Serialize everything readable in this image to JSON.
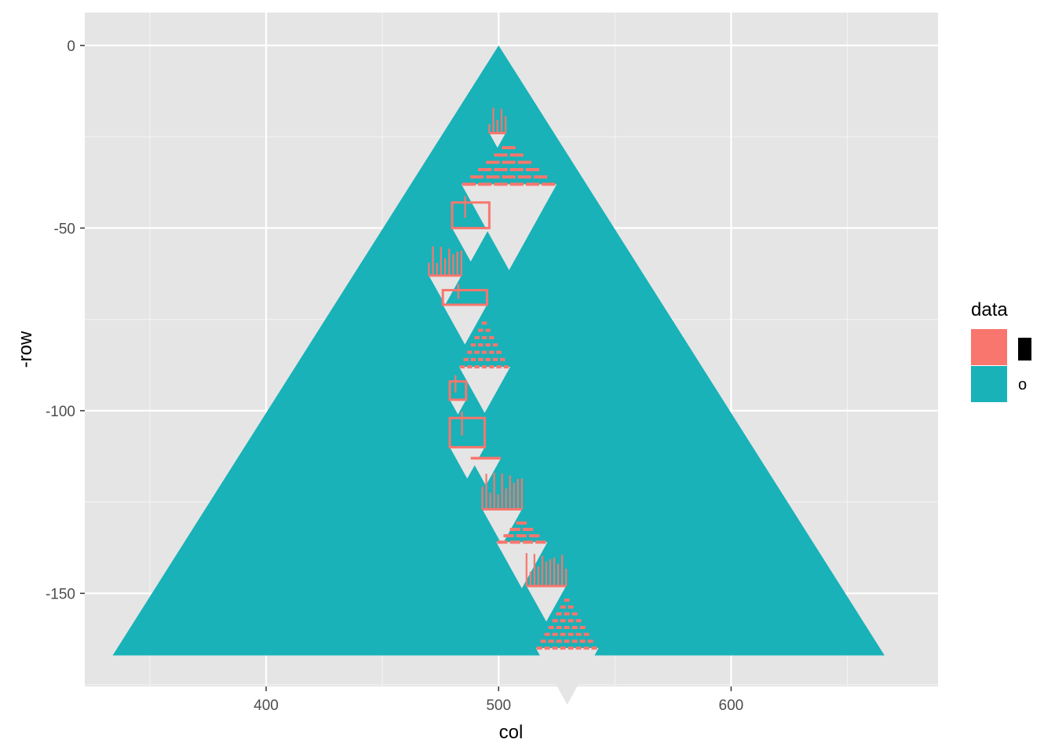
{
  "chart_data": {
    "type": "heatmap",
    "title": "",
    "xlabel": "col",
    "ylabel": "-row",
    "xlim": [
      322,
      689
    ],
    "ylim": [
      -175.5,
      9
    ],
    "x_ticks": [
      400,
      500,
      600
    ],
    "y_ticks": [
      0,
      -50,
      -100,
      -150
    ],
    "grid": true,
    "legend": {
      "title": "data",
      "position": "right",
      "entries": [
        {
          "label": "▊",
          "color": "#F8766D"
        },
        {
          "label": "o",
          "color": "#19B2B8"
        }
      ]
    },
    "background": "#e5e5e5",
    "series": [
      {
        "name": "o",
        "color": "#19B2B8",
        "description_shape": "triangle",
        "apex": [
          500,
          0
        ],
        "base_row": -167,
        "base_x": [
          334,
          666
        ]
      },
      {
        "name": "▊",
        "color": "#F8766D",
        "description_shape": "scattered cells along a diagonal chain",
        "blocks": [
          {
            "x": [
              496,
              503
            ],
            "y": [
              -17,
              -24
            ],
            "kind": "spikes"
          },
          {
            "x": [
              484,
              525
            ],
            "y": [
              -26,
              -38
            ],
            "kind": "stair"
          },
          {
            "x": [
              480,
              496
            ],
            "y": [
              -43,
              -50
            ],
            "kind": "box"
          },
          {
            "x": [
              470,
              484
            ],
            "y": [
              -55,
              -63
            ],
            "kind": "spikes"
          },
          {
            "x": [
              476,
              495
            ],
            "y": [
              -67,
              -71
            ],
            "kind": "box"
          },
          {
            "x": [
              483,
              505
            ],
            "y": [
              -74,
              -88
            ],
            "kind": "stair"
          },
          {
            "x": [
              479,
              486
            ],
            "y": [
              -92,
              -97
            ],
            "kind": "box"
          },
          {
            "x": [
              479,
              494
            ],
            "y": [
              -102,
              -110
            ],
            "kind": "box"
          },
          {
            "x": [
              488,
              501
            ],
            "y": [
              -113,
              -113
            ],
            "kind": "line"
          },
          {
            "x": [
              493,
              510
            ],
            "y": [
              -117,
              -127
            ],
            "kind": "spikes"
          },
          {
            "x": [
              499,
              521
            ],
            "y": [
              -129,
              -136
            ],
            "kind": "stair"
          },
          {
            "x": [
              512,
              529
            ],
            "y": [
              -139,
              -148
            ],
            "kind": "spikes"
          },
          {
            "x": [
              516,
              543
            ],
            "y": [
              -150,
              -165
            ],
            "kind": "stair"
          }
        ]
      }
    ]
  }
}
